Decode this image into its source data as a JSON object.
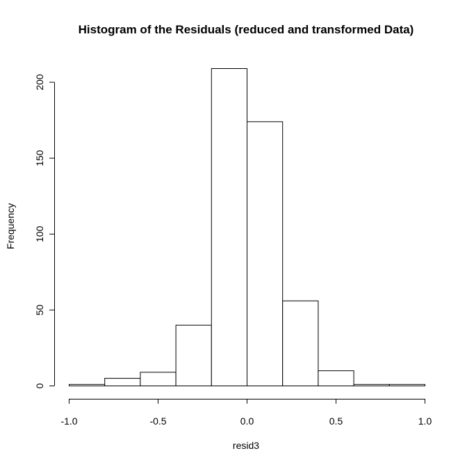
{
  "chart_data": {
    "type": "histogram",
    "title": "Histogram of the Residuals (reduced and transformed Data)",
    "xlabel": "resid3",
    "ylabel": "Frequency",
    "xlim": [
      -1.0,
      1.0
    ],
    "ylim": [
      0,
      209
    ],
    "x_ticks": [
      -1.0,
      -0.5,
      0.0,
      0.5,
      1.0
    ],
    "x_tick_labels": [
      "-1.0",
      "-0.5",
      "0.0",
      "0.5",
      "1.0"
    ],
    "y_ticks": [
      0,
      50,
      100,
      150,
      200
    ],
    "y_tick_labels": [
      "0",
      "50",
      "100",
      "150",
      "200"
    ],
    "bins": [
      {
        "x0": -1.0,
        "x1": -0.8,
        "count": 1
      },
      {
        "x0": -0.8,
        "x1": -0.6,
        "count": 5
      },
      {
        "x0": -0.6,
        "x1": -0.4,
        "count": 9
      },
      {
        "x0": -0.4,
        "x1": -0.2,
        "count": 40
      },
      {
        "x0": -0.2,
        "x1": 0.0,
        "count": 209
      },
      {
        "x0": 0.0,
        "x1": 0.2,
        "count": 174
      },
      {
        "x0": 0.2,
        "x1": 0.4,
        "count": 56
      },
      {
        "x0": 0.4,
        "x1": 0.6,
        "count": 10
      },
      {
        "x0": 0.6,
        "x1": 0.8,
        "count": 1
      },
      {
        "x0": 0.8,
        "x1": 1.0,
        "count": 1
      }
    ],
    "bar_fill": "#ffffff",
    "bar_stroke": "#000000",
    "grid": false,
    "legend": "none"
  }
}
